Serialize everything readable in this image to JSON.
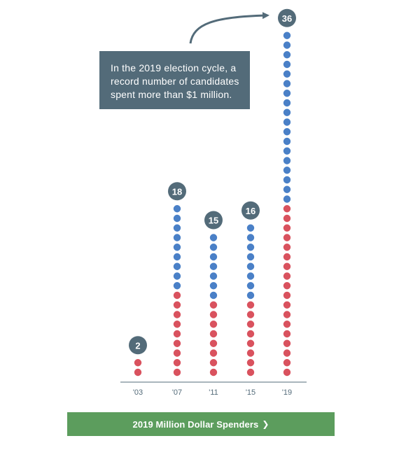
{
  "chart_data": {
    "type": "dot",
    "categories": [
      "'03",
      "'07",
      "'11",
      "'15",
      "'19"
    ],
    "totals": [
      2,
      18,
      15,
      16,
      36
    ],
    "series": [
      {
        "values": [
          2,
          9,
          8,
          8,
          18
        ],
        "color": "#d9525e"
      },
      {
        "values": [
          0,
          9,
          7,
          8,
          18
        ],
        "color": "#4a80c7"
      }
    ],
    "total_badge_color": "#536b79",
    "axis_color": "#536b79"
  },
  "callout": {
    "text": "In the 2019 election cycle, a record number of candidates spent more than $1 million."
  },
  "cta": {
    "label": "2019 Million Dollar Spenders",
    "icon": "chevron-right-icon",
    "color": "#5c9d5d"
  }
}
